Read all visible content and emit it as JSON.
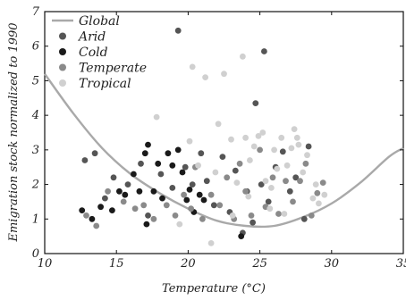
{
  "chart_data": {
    "type": "scatter",
    "title": "",
    "xlabel": "Temperature (°C)",
    "ylabel": "Emigration stock normalized to 1990",
    "xlim": [
      10,
      35
    ],
    "ylim": [
      0,
      7
    ],
    "xticks": [
      10,
      15,
      20,
      25,
      30,
      35
    ],
    "yticks": [
      0,
      1,
      2,
      3,
      4,
      5,
      6,
      7
    ],
    "grid": false,
    "legend_position": "top-left",
    "curve": {
      "name": "Global",
      "color": "#a9a9a9",
      "x": [
        10,
        12,
        14,
        16,
        18,
        20,
        22,
        24,
        26,
        28,
        30,
        32,
        34,
        35
      ],
      "y": [
        5.2,
        4.05,
        3.05,
        2.3,
        1.75,
        1.3,
        0.95,
        0.8,
        0.8,
        1.05,
        1.45,
        2.05,
        2.8,
        3.05
      ]
    },
    "series": [
      {
        "name": "Arid",
        "color": "#555555",
        "points": [
          [
            12.8,
            2.7
          ],
          [
            13.5,
            2.9
          ],
          [
            14.2,
            1.6
          ],
          [
            14.8,
            2.2
          ],
          [
            15.8,
            2.0
          ],
          [
            16.7,
            2.6
          ],
          [
            17.2,
            1.1
          ],
          [
            18.1,
            2.3
          ],
          [
            18.9,
            1.9
          ],
          [
            19.3,
            6.45
          ],
          [
            19.8,
            2.5
          ],
          [
            20.3,
            2.0
          ],
          [
            20.9,
            2.9
          ],
          [
            21.3,
            2.1
          ],
          [
            21.8,
            1.4
          ],
          [
            22.4,
            2.8
          ],
          [
            22.9,
            1.2
          ],
          [
            23.3,
            2.4
          ],
          [
            23.8,
            0.6
          ],
          [
            24.1,
            1.8
          ],
          [
            24.5,
            0.9
          ],
          [
            24.7,
            4.35
          ],
          [
            25.1,
            2.0
          ],
          [
            25.3,
            5.85
          ],
          [
            25.6,
            1.5
          ],
          [
            26.1,
            2.5
          ],
          [
            26.6,
            2.95
          ],
          [
            27.1,
            1.8
          ],
          [
            27.5,
            2.2
          ],
          [
            28.1,
            1.0
          ],
          [
            28.4,
            3.1
          ]
        ]
      },
      {
        "name": "Cold",
        "color": "#1a1a1a",
        "points": [
          [
            12.6,
            1.25
          ],
          [
            13.3,
            1.0
          ],
          [
            13.9,
            1.35
          ],
          [
            14.7,
            1.25
          ],
          [
            15.2,
            1.8
          ],
          [
            15.6,
            1.7
          ],
          [
            16.2,
            2.3
          ],
          [
            16.6,
            1.8
          ],
          [
            17.0,
            2.9
          ],
          [
            17.2,
            3.15
          ],
          [
            17.6,
            1.8
          ],
          [
            17.9,
            2.6
          ],
          [
            18.2,
            1.6
          ],
          [
            18.6,
            2.9
          ],
          [
            18.9,
            2.55
          ],
          [
            19.3,
            3.0
          ],
          [
            19.6,
            2.35
          ],
          [
            19.9,
            1.55
          ],
          [
            20.1,
            1.85
          ],
          [
            20.4,
            1.2
          ],
          [
            20.8,
            1.7
          ],
          [
            21.1,
            1.55
          ],
          [
            23.7,
            0.5
          ],
          [
            17.1,
            0.85
          ]
        ]
      },
      {
        "name": "Temperate",
        "color": "#8a8a8a",
        "points": [
          [
            12.9,
            1.1
          ],
          [
            13.6,
            0.8
          ],
          [
            14.4,
            1.8
          ],
          [
            15.5,
            1.5
          ],
          [
            16.3,
            1.3
          ],
          [
            16.9,
            1.4
          ],
          [
            17.6,
            1.0
          ],
          [
            18.5,
            1.4
          ],
          [
            19.1,
            1.1
          ],
          [
            19.7,
            1.7
          ],
          [
            20.2,
            1.3
          ],
          [
            20.5,
            2.5
          ],
          [
            21.0,
            1.0
          ],
          [
            21.6,
            1.7
          ],
          [
            22.2,
            1.4
          ],
          [
            22.7,
            2.2
          ],
          [
            23.2,
            1.0
          ],
          [
            23.6,
            2.6
          ],
          [
            24.0,
            1.8
          ],
          [
            24.4,
            1.1
          ],
          [
            25.0,
            3.0
          ],
          [
            25.4,
            1.35
          ],
          [
            25.9,
            2.2
          ],
          [
            26.3,
            1.15
          ],
          [
            26.8,
            2.1
          ],
          [
            27.3,
            1.5
          ],
          [
            27.8,
            2.1
          ],
          [
            28.2,
            2.6
          ],
          [
            28.6,
            1.1
          ],
          [
            29.0,
            1.75
          ],
          [
            29.4,
            2.05
          ]
        ]
      },
      {
        "name": "Tropical",
        "color": "#d0d0d0",
        "points": [
          [
            17.8,
            3.95
          ],
          [
            19.4,
            0.85
          ],
          [
            20.1,
            3.25
          ],
          [
            20.3,
            5.4
          ],
          [
            20.7,
            2.55
          ],
          [
            21.2,
            5.1
          ],
          [
            21.6,
            0.3
          ],
          [
            21.9,
            2.35
          ],
          [
            22.1,
            3.75
          ],
          [
            22.5,
            5.2
          ],
          [
            23.0,
            3.3
          ],
          [
            23.4,
            2.05
          ],
          [
            23.8,
            5.7
          ],
          [
            24.0,
            3.35
          ],
          [
            24.3,
            2.7
          ],
          [
            24.6,
            3.1
          ],
          [
            24.9,
            3.4
          ],
          [
            25.2,
            3.5
          ],
          [
            25.4,
            2.1
          ],
          [
            25.7,
            1.3
          ],
          [
            26.0,
            3.0
          ],
          [
            26.2,
            2.45
          ],
          [
            26.5,
            3.35
          ],
          [
            26.9,
            2.55
          ],
          [
            27.2,
            3.05
          ],
          [
            27.4,
            3.6
          ],
          [
            27.7,
            3.15
          ],
          [
            28.0,
            2.35
          ],
          [
            28.3,
            2.85
          ],
          [
            28.7,
            1.6
          ],
          [
            29.1,
            1.45
          ],
          [
            29.5,
            1.7
          ],
          [
            24.2,
            1.65
          ],
          [
            25.8,
            1.9
          ],
          [
            26.7,
            1.15
          ],
          [
            27.6,
            3.35
          ],
          [
            23.1,
            1.1
          ],
          [
            28.9,
            2.0
          ]
        ]
      }
    ]
  }
}
